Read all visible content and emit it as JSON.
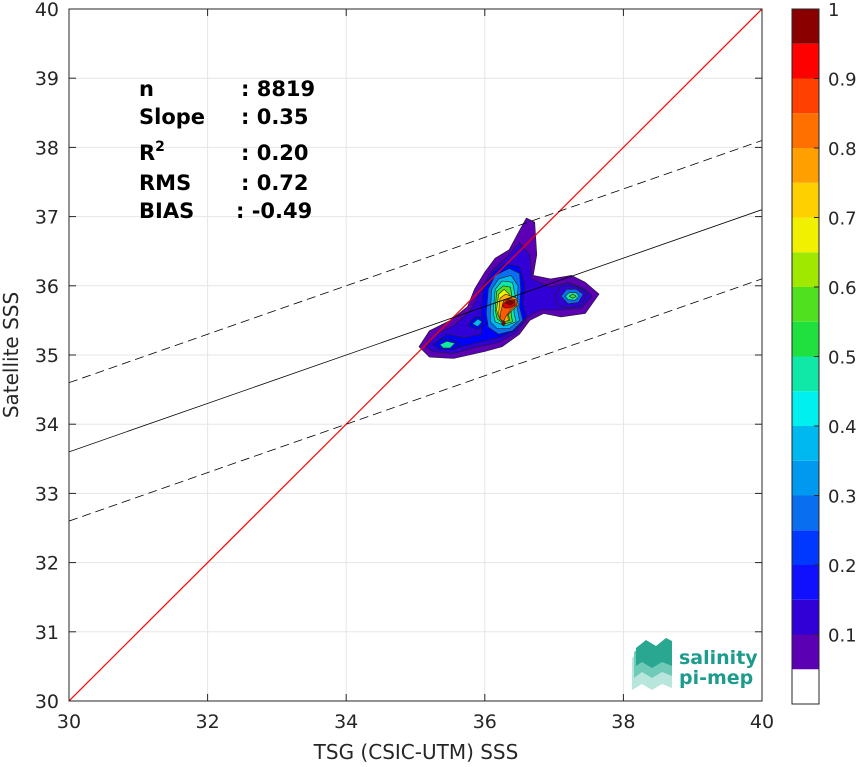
{
  "chart_data": {
    "type": "heatmap",
    "xlabel": "TSG (CSIC-UTM) SSS",
    "ylabel": "Satellite SSS",
    "xlim": [
      30,
      40
    ],
    "ylim": [
      30,
      40
    ],
    "xticks": [
      30,
      32,
      34,
      36,
      38,
      40
    ],
    "yticks": [
      30,
      31,
      32,
      33,
      34,
      35,
      36,
      37,
      38,
      39,
      40
    ],
    "grid": true,
    "stats": [
      {
        "name": "n",
        "sup": "",
        "value": ": 8819"
      },
      {
        "name": "Slope",
        "sup": "",
        "value": ": 0.35"
      },
      {
        "name": "R",
        "sup": "2",
        "value": ": 0.20"
      },
      {
        "name": "RMS",
        "sup": "",
        "value": ": 0.72"
      },
      {
        "name": "BIAS",
        "sup": "",
        "value": ": -0.49"
      }
    ],
    "lines": [
      {
        "name": "identity",
        "color": "#ff0000",
        "style": "solid",
        "points": [
          [
            30,
            30
          ],
          [
            40,
            40
          ]
        ]
      },
      {
        "name": "fit",
        "color": "#000000",
        "style": "solid",
        "points": [
          [
            30,
            33.6
          ],
          [
            40,
            37.1
          ]
        ]
      },
      {
        "name": "fit-upper",
        "color": "#000000",
        "style": "dashed",
        "points": [
          [
            30,
            34.6
          ],
          [
            40,
            38.1
          ]
        ]
      },
      {
        "name": "fit-lower",
        "color": "#000000",
        "style": "dashed",
        "points": [
          [
            30,
            32.6
          ],
          [
            40,
            36.1
          ]
        ]
      }
    ],
    "density": [
      {
        "level": 0.05,
        "color": "#5b00b2",
        "polygon": [
          [
            35.05,
            35.12
          ],
          [
            35.2,
            35.35
          ],
          [
            35.5,
            35.5
          ],
          [
            35.75,
            35.7
          ],
          [
            35.85,
            35.95
          ],
          [
            36.0,
            36.2
          ],
          [
            36.15,
            36.4
          ],
          [
            36.35,
            36.52
          ],
          [
            36.5,
            36.8
          ],
          [
            36.6,
            36.98
          ],
          [
            36.72,
            36.92
          ],
          [
            36.75,
            36.45
          ],
          [
            36.7,
            36.15
          ],
          [
            36.95,
            36.1
          ],
          [
            37.25,
            36.15
          ],
          [
            37.45,
            36.05
          ],
          [
            37.65,
            35.88
          ],
          [
            37.45,
            35.6
          ],
          [
            37.1,
            35.55
          ],
          [
            36.85,
            35.6
          ],
          [
            36.65,
            35.5
          ],
          [
            36.5,
            35.3
          ],
          [
            36.25,
            35.12
          ],
          [
            36.0,
            35.05
          ],
          [
            35.55,
            34.95
          ],
          [
            35.2,
            34.97
          ]
        ]
      },
      {
        "level": 0.1,
        "color": "#3100d6",
        "polygon": [
          [
            35.15,
            35.12
          ],
          [
            35.3,
            35.3
          ],
          [
            35.55,
            35.42
          ],
          [
            35.8,
            35.65
          ],
          [
            35.95,
            35.95
          ],
          [
            36.1,
            36.22
          ],
          [
            36.3,
            36.4
          ],
          [
            36.5,
            36.62
          ],
          [
            36.65,
            36.45
          ],
          [
            36.68,
            36.1
          ],
          [
            36.95,
            35.98
          ],
          [
            37.2,
            36.05
          ],
          [
            37.45,
            35.95
          ],
          [
            37.55,
            35.85
          ],
          [
            37.4,
            35.68
          ],
          [
            37.1,
            35.65
          ],
          [
            36.8,
            35.65
          ],
          [
            36.62,
            35.55
          ],
          [
            36.45,
            35.32
          ],
          [
            36.2,
            35.18
          ],
          [
            35.9,
            35.12
          ],
          [
            35.55,
            35.02
          ],
          [
            35.25,
            35.05
          ]
        ]
      },
      {
        "level": 0.2,
        "color": "#0000ff",
        "polygon": [
          [
            35.25,
            35.15
          ],
          [
            35.45,
            35.3
          ],
          [
            35.7,
            35.25
          ],
          [
            35.95,
            35.3
          ],
          [
            35.95,
            35.65
          ],
          [
            35.98,
            35.95
          ],
          [
            36.12,
            36.2
          ],
          [
            36.3,
            36.32
          ],
          [
            36.5,
            36.28
          ],
          [
            36.58,
            36.0
          ],
          [
            36.55,
            35.75
          ],
          [
            36.6,
            35.55
          ],
          [
            36.42,
            35.35
          ],
          [
            36.2,
            35.25
          ],
          [
            35.9,
            35.18
          ],
          [
            35.6,
            35.1
          ],
          [
            35.35,
            35.08
          ]
        ]
      },
      {
        "level": 0.3,
        "color": "#0a6ef0",
        "polygon": [
          [
            36.02,
            35.6
          ],
          [
            36.05,
            35.95
          ],
          [
            36.15,
            36.15
          ],
          [
            36.35,
            36.25
          ],
          [
            36.5,
            36.18
          ],
          [
            36.52,
            35.95
          ],
          [
            36.5,
            35.7
          ],
          [
            36.55,
            35.5
          ],
          [
            36.4,
            35.35
          ],
          [
            36.2,
            35.3
          ],
          [
            36.05,
            35.4
          ]
        ]
      },
      {
        "level": 0.35,
        "color": "#00b8f0",
        "polygon": [
          [
            36.08,
            35.6
          ],
          [
            36.1,
            35.95
          ],
          [
            36.2,
            36.1
          ],
          [
            36.38,
            36.15
          ],
          [
            36.48,
            36.0
          ],
          [
            36.46,
            35.72
          ],
          [
            36.5,
            35.5
          ],
          [
            36.35,
            35.38
          ],
          [
            36.18,
            35.38
          ],
          [
            36.08,
            35.48
          ]
        ]
      },
      {
        "level": 0.45,
        "color": "#10e8a8",
        "polygon": [
          [
            36.12,
            35.62
          ],
          [
            36.15,
            35.95
          ],
          [
            36.25,
            36.07
          ],
          [
            36.4,
            36.05
          ],
          [
            36.44,
            35.85
          ],
          [
            36.42,
            35.62
          ],
          [
            36.45,
            35.48
          ],
          [
            36.3,
            35.42
          ],
          [
            36.15,
            35.48
          ]
        ]
      },
      {
        "level": 0.55,
        "color": "#50e020",
        "polygon": [
          [
            36.15,
            35.65
          ],
          [
            36.17,
            35.92
          ],
          [
            36.27,
            36.0
          ],
          [
            36.37,
            35.98
          ],
          [
            36.4,
            35.8
          ],
          [
            36.38,
            35.6
          ],
          [
            36.4,
            35.48
          ],
          [
            36.28,
            35.45
          ],
          [
            36.18,
            35.52
          ]
        ]
      },
      {
        "level": 0.65,
        "color": "#f0f000",
        "polygon": [
          [
            36.17,
            35.65
          ],
          [
            36.2,
            35.88
          ],
          [
            36.28,
            35.95
          ],
          [
            36.35,
            35.88
          ],
          [
            36.36,
            35.72
          ],
          [
            36.34,
            35.58
          ],
          [
            36.36,
            35.5
          ],
          [
            36.27,
            35.48
          ],
          [
            36.2,
            35.55
          ]
        ]
      },
      {
        "level": 0.7,
        "color": "#ffb000",
        "polygon": [
          [
            36.2,
            35.62
          ],
          [
            36.22,
            35.82
          ],
          [
            36.3,
            35.88
          ],
          [
            36.38,
            35.85
          ],
          [
            36.46,
            35.82
          ],
          [
            36.48,
            35.72
          ],
          [
            36.4,
            35.65
          ],
          [
            36.33,
            35.58
          ],
          [
            36.34,
            35.5
          ],
          [
            36.26,
            35.47
          ],
          [
            36.21,
            35.53
          ]
        ]
      },
      {
        "level": 0.8,
        "color": "#ff5a00",
        "polygon": [
          [
            36.23,
            35.62
          ],
          [
            36.27,
            35.78
          ],
          [
            36.35,
            35.82
          ],
          [
            36.45,
            35.8
          ],
          [
            36.46,
            35.72
          ],
          [
            36.38,
            35.66
          ],
          [
            36.3,
            35.55
          ],
          [
            36.27,
            35.48
          ],
          [
            36.22,
            35.52
          ]
        ]
      },
      {
        "level": 0.9,
        "color": "#e00000",
        "polygon": [
          [
            36.25,
            35.72
          ],
          [
            36.33,
            35.8
          ],
          [
            36.43,
            35.79
          ],
          [
            36.44,
            35.72
          ],
          [
            36.36,
            35.68
          ],
          [
            36.28,
            35.68
          ]
        ]
      },
      {
        "level": 0.95,
        "color": "#8a0000",
        "polygon": [
          [
            36.3,
            35.75
          ],
          [
            36.36,
            35.79
          ],
          [
            36.42,
            35.76
          ],
          [
            36.37,
            35.72
          ]
        ]
      },
      {
        "level": 0.95,
        "color": "#8a0000",
        "polygon": [
          [
            36.24,
            35.45
          ],
          [
            36.27,
            35.5
          ],
          [
            36.3,
            35.46
          ],
          [
            36.27,
            35.42
          ]
        ]
      },
      {
        "level": 0.1,
        "color": "#3100d6",
        "polygon": [
          [
            37.0,
            35.85
          ],
          [
            37.1,
            36.0
          ],
          [
            37.3,
            36.0
          ],
          [
            37.48,
            35.9
          ],
          [
            37.4,
            35.72
          ],
          [
            37.2,
            35.68
          ],
          [
            37.05,
            35.72
          ]
        ]
      },
      {
        "level": 0.3,
        "color": "#0a6ef0",
        "polygon": [
          [
            37.1,
            35.85
          ],
          [
            37.18,
            35.95
          ],
          [
            37.32,
            35.95
          ],
          [
            37.42,
            35.88
          ],
          [
            37.35,
            35.76
          ],
          [
            37.2,
            35.74
          ]
        ]
      },
      {
        "level": 0.45,
        "color": "#10e8a8",
        "polygon": [
          [
            37.16,
            35.85
          ],
          [
            37.22,
            35.9
          ],
          [
            37.32,
            35.9
          ],
          [
            37.36,
            35.85
          ],
          [
            37.3,
            35.79
          ],
          [
            37.2,
            35.8
          ]
        ]
      },
      {
        "level": 0.55,
        "color": "#50e020",
        "polygon": [
          [
            37.22,
            35.85
          ],
          [
            37.27,
            35.88
          ],
          [
            37.32,
            35.85
          ],
          [
            37.27,
            35.82
          ]
        ]
      },
      {
        "level": 0.2,
        "color": "#0000ff",
        "polygon": [
          [
            35.25,
            35.15
          ],
          [
            35.35,
            35.22
          ],
          [
            35.55,
            35.22
          ],
          [
            35.65,
            35.15
          ],
          [
            35.55,
            35.08
          ],
          [
            35.35,
            35.08
          ]
        ]
      },
      {
        "level": 0.45,
        "color": "#10e8a8",
        "polygon": [
          [
            35.35,
            35.15
          ],
          [
            35.45,
            35.2
          ],
          [
            35.57,
            35.17
          ],
          [
            35.5,
            35.1
          ],
          [
            35.4,
            35.1
          ]
        ]
      },
      {
        "level": 0.2,
        "color": "#0000ff",
        "polygon": [
          [
            35.75,
            35.42
          ],
          [
            35.85,
            35.55
          ],
          [
            35.97,
            35.55
          ],
          [
            36.0,
            35.45
          ],
          [
            35.9,
            35.37
          ]
        ]
      },
      {
        "level": 0.35,
        "color": "#00b8f0",
        "polygon": [
          [
            35.82,
            35.45
          ],
          [
            35.9,
            35.52
          ],
          [
            35.96,
            35.48
          ],
          [
            35.9,
            35.41
          ]
        ]
      }
    ],
    "colorbar": {
      "min": 0,
      "max": 1,
      "label": "",
      "ticks": [
        0.1,
        0.2,
        0.3,
        0.4,
        0.5,
        0.6,
        0.7,
        0.8,
        0.9,
        1
      ],
      "tick_labels": [
        "0.1",
        "0.2",
        "0.3",
        "0.4",
        "0.5",
        "0.6",
        "0.7",
        "0.8",
        "0.9",
        "1"
      ],
      "bands": [
        {
          "from": 0.0,
          "to": 0.05,
          "color": "#ffffff"
        },
        {
          "from": 0.05,
          "to": 0.1,
          "color": "#5b00b2"
        },
        {
          "from": 0.1,
          "to": 0.15,
          "color": "#3100d6"
        },
        {
          "from": 0.15,
          "to": 0.2,
          "color": "#1010ff"
        },
        {
          "from": 0.2,
          "to": 0.25,
          "color": "#0038ff"
        },
        {
          "from": 0.25,
          "to": 0.3,
          "color": "#0a6ef0"
        },
        {
          "from": 0.3,
          "to": 0.35,
          "color": "#0099f0"
        },
        {
          "from": 0.35,
          "to": 0.4,
          "color": "#00b8f0"
        },
        {
          "from": 0.4,
          "to": 0.45,
          "color": "#00f0f0"
        },
        {
          "from": 0.45,
          "to": 0.5,
          "color": "#10e8a8"
        },
        {
          "from": 0.5,
          "to": 0.55,
          "color": "#20e040"
        },
        {
          "from": 0.55,
          "to": 0.6,
          "color": "#50e020"
        },
        {
          "from": 0.6,
          "to": 0.65,
          "color": "#a0e800"
        },
        {
          "from": 0.65,
          "to": 0.7,
          "color": "#f0f000"
        },
        {
          "from": 0.7,
          "to": 0.75,
          "color": "#ffd000"
        },
        {
          "from": 0.75,
          "to": 0.8,
          "color": "#ffa000"
        },
        {
          "from": 0.8,
          "to": 0.85,
          "color": "#ff7000"
        },
        {
          "from": 0.85,
          "to": 0.9,
          "color": "#ff4000"
        },
        {
          "from": 0.9,
          "to": 0.95,
          "color": "#ff0000"
        },
        {
          "from": 0.95,
          "to": 1.0,
          "color": "#8a0000"
        }
      ]
    }
  },
  "logo": {
    "line1": "salinity",
    "line2": "pi-mep",
    "color": "#1d9c8e"
  }
}
